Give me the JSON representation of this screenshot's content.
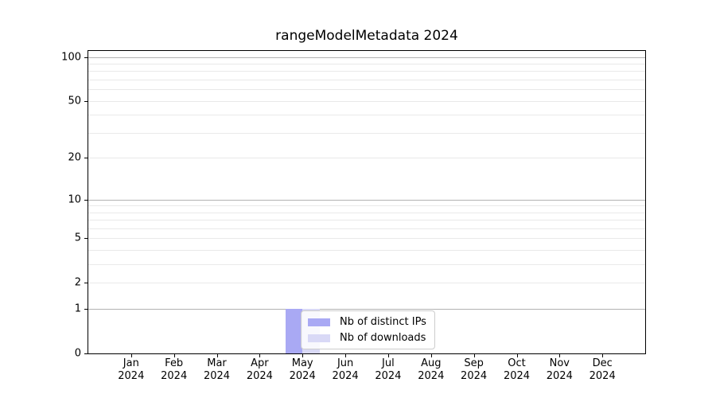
{
  "chart_data": {
    "type": "bar",
    "title": "rangeModelMetadata 2024",
    "categories": [
      "Jan",
      "Feb",
      "Mar",
      "Apr",
      "May",
      "Jun",
      "Jul",
      "Aug",
      "Sep",
      "Oct",
      "Nov",
      "Dec"
    ],
    "x_year_label": "2024",
    "series": [
      {
        "name": "Nb of distinct IPs",
        "color": "#a9a9f4",
        "values": [
          0,
          0,
          0,
          0,
          1,
          0,
          0,
          0,
          0,
          0,
          0,
          0
        ]
      },
      {
        "name": "Nb of downloads",
        "color": "#d9d9f6",
        "values": [
          0,
          0,
          0,
          0,
          1,
          0,
          0,
          0,
          0,
          0,
          0,
          0
        ]
      }
    ],
    "y_axis": {
      "scale": "log1p",
      "tick_values": [
        0,
        1,
        2,
        5,
        10,
        20,
        50,
        100
      ],
      "tick_labels": [
        "0",
        "1",
        "2",
        "5",
        "10",
        "20",
        "50",
        "100"
      ],
      "decade_gridlines": [
        1,
        10,
        100
      ],
      "minor_gridlines": [
        2,
        3,
        4,
        5,
        6,
        7,
        8,
        9,
        20,
        30,
        40,
        50,
        60,
        70,
        80,
        90
      ],
      "max": 110,
      "grid_decade_color": "#b2b2b2",
      "grid_minor_color": "#e9e9e9"
    },
    "legend_position": "inside-bottom-center",
    "axis_color": "#000000",
    "background_color": "#ffffff"
  }
}
